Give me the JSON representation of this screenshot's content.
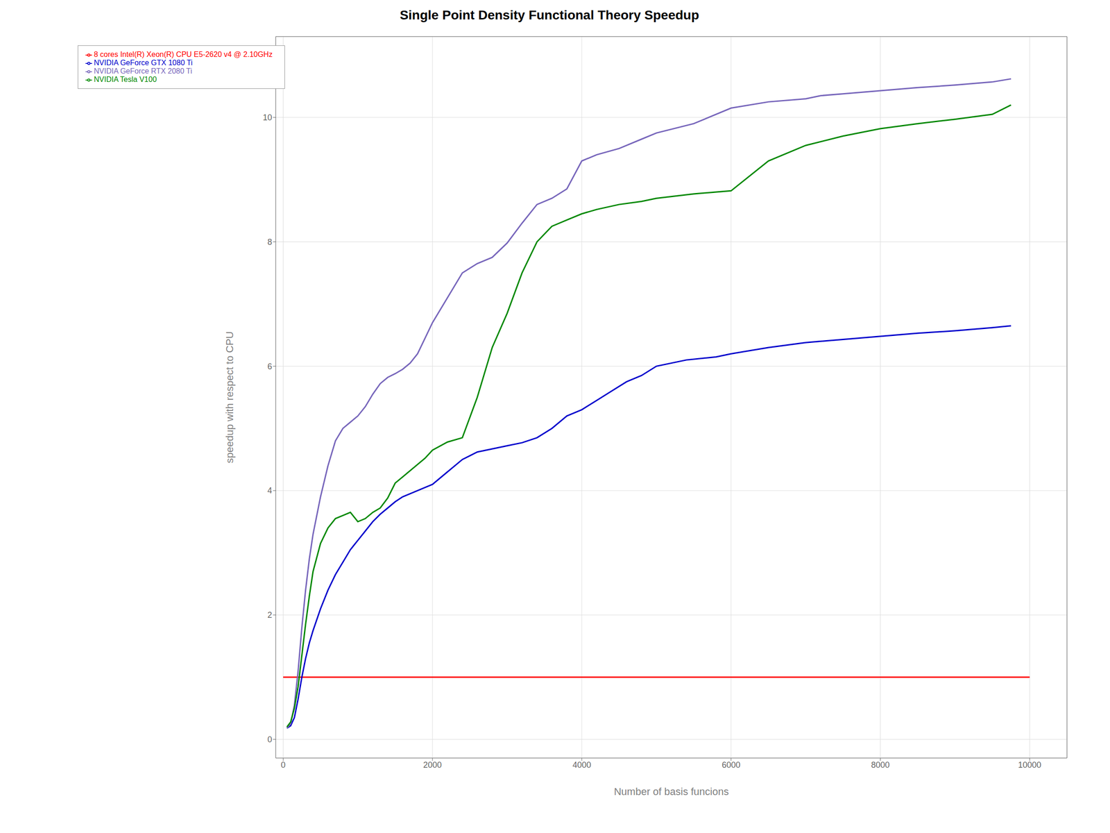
{
  "chart_data": {
    "type": "line",
    "title": "Single Point Density Functional Theory Speedup",
    "xlabel": "Number of basis funcions",
    "ylabel": "speedup with respect to CPU",
    "xlim": [
      -100,
      10500
    ],
    "ylim": [
      -0.3,
      11.3
    ],
    "xticks": [
      0,
      2000,
      4000,
      6000,
      8000,
      10000
    ],
    "yticks": [
      0,
      2,
      4,
      6,
      8,
      10
    ],
    "grid": true,
    "legend": "upper left",
    "series": [
      {
        "name": "8 cores Intel(R) Xeon(R) CPU E5-2620 v4 @ 2.10GHz",
        "color": "#ff0000",
        "x": [
          0,
          10000
        ],
        "values": [
          1.0,
          1.0
        ]
      },
      {
        "name": "NVIDIA GeForce GTX 1080 Ti",
        "color": "#0000cc",
        "x": [
          50,
          100,
          150,
          200,
          250,
          300,
          350,
          400,
          500,
          600,
          700,
          800,
          900,
          1000,
          1100,
          1200,
          1300,
          1400,
          1500,
          1600,
          1700,
          1800,
          1900,
          2000,
          2200,
          2400,
          2600,
          2800,
          3000,
          3200,
          3400,
          3600,
          3800,
          4000,
          4200,
          4400,
          4600,
          4800,
          5000,
          5400,
          5800,
          6000,
          6500,
          7000,
          7500,
          8000,
          8500,
          9000,
          9500,
          9750
        ],
        "values": [
          0.18,
          0.22,
          0.35,
          0.65,
          1.0,
          1.3,
          1.55,
          1.75,
          2.1,
          2.4,
          2.65,
          2.85,
          3.05,
          3.2,
          3.35,
          3.5,
          3.62,
          3.72,
          3.82,
          3.9,
          3.95,
          4.0,
          4.05,
          4.1,
          4.3,
          4.5,
          4.62,
          4.67,
          4.72,
          4.77,
          4.85,
          5.0,
          5.2,
          5.3,
          5.45,
          5.6,
          5.75,
          5.85,
          6.0,
          6.1,
          6.15,
          6.2,
          6.3,
          6.38,
          6.43,
          6.48,
          6.53,
          6.57,
          6.62,
          6.65
        ]
      },
      {
        "name": "NVIDIA GeForce RTX 2080 Ti",
        "color": "#7766bb",
        "x": [
          50,
          100,
          150,
          200,
          250,
          300,
          350,
          400,
          500,
          600,
          700,
          800,
          900,
          1000,
          1100,
          1200,
          1300,
          1400,
          1500,
          1600,
          1700,
          1800,
          1900,
          2000,
          2200,
          2400,
          2600,
          2800,
          3000,
          3200,
          3400,
          3600,
          3800,
          4000,
          4200,
          4500,
          4800,
          5000,
          5500,
          6000,
          6500,
          7000,
          7200,
          7500,
          8000,
          8500,
          9000,
          9500,
          9750
        ],
        "values": [
          0.18,
          0.25,
          0.55,
          1.1,
          1.8,
          2.4,
          2.9,
          3.3,
          3.9,
          4.4,
          4.8,
          5.0,
          5.1,
          5.2,
          5.35,
          5.55,
          5.72,
          5.82,
          5.88,
          5.95,
          6.05,
          6.2,
          6.45,
          6.7,
          7.1,
          7.5,
          7.65,
          7.75,
          7.98,
          8.3,
          8.6,
          8.7,
          8.85,
          9.3,
          9.4,
          9.5,
          9.65,
          9.75,
          9.9,
          10.15,
          10.25,
          10.3,
          10.35,
          10.38,
          10.43,
          10.48,
          10.52,
          10.57,
          10.62
        ]
      },
      {
        "name": "NVIDIA Tesla V100",
        "color": "#008800",
        "x": [
          50,
          100,
          150,
          200,
          250,
          300,
          350,
          400,
          500,
          600,
          700,
          800,
          900,
          1000,
          1100,
          1200,
          1300,
          1400,
          1500,
          1600,
          1700,
          1800,
          1900,
          2000,
          2200,
          2400,
          2600,
          2800,
          3000,
          3200,
          3400,
          3600,
          3800,
          4000,
          4200,
          4500,
          4800,
          5000,
          5500,
          6000,
          6500,
          7000,
          7500,
          8000,
          8500,
          9000,
          9500,
          9750
        ],
        "values": [
          0.2,
          0.28,
          0.5,
          0.85,
          1.35,
          1.85,
          2.3,
          2.7,
          3.15,
          3.4,
          3.55,
          3.6,
          3.65,
          3.5,
          3.55,
          3.65,
          3.72,
          3.88,
          4.12,
          4.22,
          4.32,
          4.42,
          4.52,
          4.65,
          4.78,
          4.85,
          5.5,
          6.3,
          6.85,
          7.5,
          8.0,
          8.25,
          8.35,
          8.45,
          8.52,
          8.6,
          8.65,
          8.7,
          8.77,
          8.82,
          9.3,
          9.55,
          9.7,
          9.82,
          9.9,
          9.97,
          10.05,
          10.2
        ]
      }
    ]
  }
}
